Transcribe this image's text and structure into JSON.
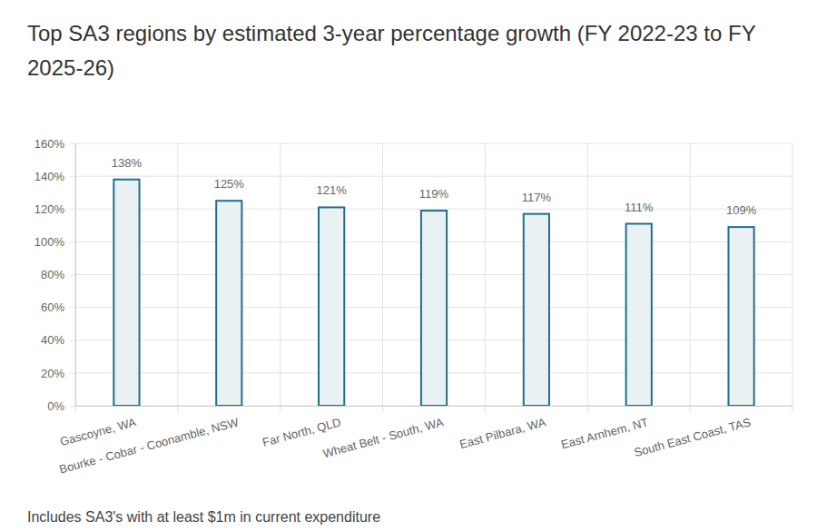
{
  "chart_data": {
    "type": "bar",
    "title": "Top SA3 regions by estimated 3-year percentage growth (FY 2022-23 to FY 2025-26)",
    "footnote": "Includes SA3's with at least $1m in current expenditure",
    "categories": [
      "Gascoyne, WA",
      "Bourke - Cobar - Coonamble, NSW",
      "Far North, QLD",
      "Wheat Belt - South, WA",
      "East Pilbara, WA",
      "East Arnhem, NT",
      "South East Coast, TAS"
    ],
    "values": [
      138,
      125,
      121,
      119,
      117,
      111,
      109
    ],
    "value_labels": [
      "138%",
      "125%",
      "121%",
      "119%",
      "117%",
      "111%",
      "109%"
    ],
    "color": "#1f6f8b",
    "ylim": [
      0,
      160
    ],
    "yticks": [
      {
        "value": 0,
        "label": "0%"
      },
      {
        "value": 20,
        "label": "20%"
      },
      {
        "value": 40,
        "label": "40%"
      },
      {
        "value": 60,
        "label": "60%"
      },
      {
        "value": 80,
        "label": "80%"
      },
      {
        "value": 100,
        "label": "100%"
      },
      {
        "value": 120,
        "label": "120%"
      },
      {
        "value": 140,
        "label": "140%"
      },
      {
        "value": 160,
        "label": "160%"
      }
    ],
    "grid": true,
    "data_labels": true
  }
}
